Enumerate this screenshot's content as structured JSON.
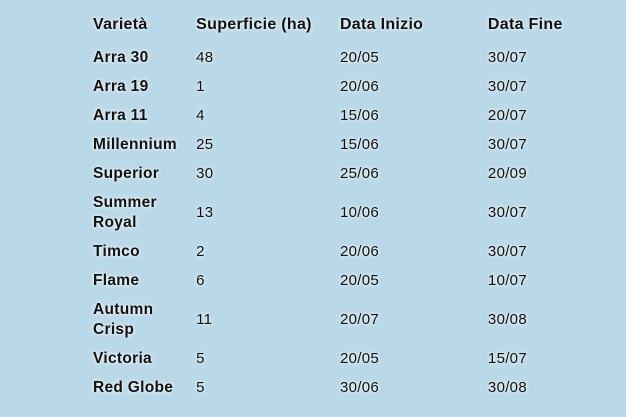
{
  "theme": {
    "background_color": "#b9d8e8",
    "text_color": "#121212"
  },
  "chart_data": {
    "type": "table",
    "title": "",
    "columns": [
      "Varietà",
      "Superficie (ha)",
      "Data Inizio",
      "Data Fine"
    ],
    "rows": [
      [
        "Arra 30",
        "48",
        "20/05",
        "30/07"
      ],
      [
        "Arra 19",
        "1",
        "20/06",
        "30/07"
      ],
      [
        "Arra 11",
        "4",
        "15/06",
        "20/07"
      ],
      [
        "Millennium",
        "25",
        "15/06",
        "30/07"
      ],
      [
        "Superior",
        "30",
        "25/06",
        "20/09"
      ],
      [
        "Summer Royal",
        "13",
        "10/06",
        "30/07"
      ],
      [
        "Timco",
        "2",
        "20/06",
        "30/07"
      ],
      [
        "Flame",
        "6",
        "20/05",
        "10/07"
      ],
      [
        "Autumn Crisp",
        "11",
        "20/07",
        "30/08"
      ],
      [
        "Victoria",
        "5",
        "20/05",
        "15/07"
      ],
      [
        "Red Globe",
        "5",
        "30/06",
        "30/08"
      ]
    ]
  }
}
